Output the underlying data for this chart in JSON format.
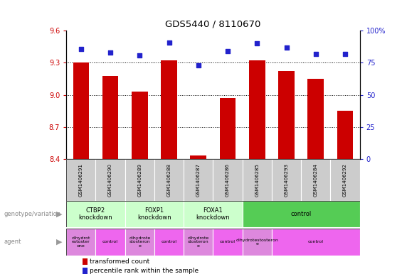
{
  "title": "GDS5440 / 8110670",
  "samples": [
    "GSM1406291",
    "GSM1406290",
    "GSM1406289",
    "GSM1406288",
    "GSM1406287",
    "GSM1406286",
    "GSM1406285",
    "GSM1406293",
    "GSM1406284",
    "GSM1406292"
  ],
  "transformed_count": [
    9.3,
    9.18,
    9.03,
    9.32,
    8.43,
    8.97,
    9.32,
    9.22,
    9.15,
    8.85
  ],
  "percentile_rank": [
    86,
    83,
    81,
    91,
    73,
    84,
    90,
    87,
    82,
    82
  ],
  "ylim_left": [
    8.4,
    9.6
  ],
  "ylim_right": [
    0,
    100
  ],
  "yticks_left": [
    8.4,
    8.7,
    9.0,
    9.3,
    9.6
  ],
  "yticks_right": [
    0,
    25,
    50,
    75,
    100
  ],
  "bar_color": "#cc0000",
  "dot_color": "#2222cc",
  "genotype_groups": [
    {
      "label": "CTBP2\nknockdown",
      "start": 0,
      "end": 2,
      "color": "#ccffcc"
    },
    {
      "label": "FOXP1\nknockdown",
      "start": 2,
      "end": 4,
      "color": "#ccffcc"
    },
    {
      "label": "FOXA1\nknockdown",
      "start": 4,
      "end": 6,
      "color": "#ccffcc"
    },
    {
      "label": "control",
      "start": 6,
      "end": 10,
      "color": "#55cc55"
    }
  ],
  "agent_groups": [
    {
      "label": "dihydrot\nestoster\none",
      "start": 0,
      "end": 1,
      "color": "#dd88dd"
    },
    {
      "label": "control",
      "start": 1,
      "end": 2,
      "color": "#ee66ee"
    },
    {
      "label": "dihydrote\nstosteron\ne",
      "start": 2,
      "end": 3,
      "color": "#dd88dd"
    },
    {
      "label": "control",
      "start": 3,
      "end": 4,
      "color": "#ee66ee"
    },
    {
      "label": "dihydrote\nstosteron\ne",
      "start": 4,
      "end": 5,
      "color": "#dd88dd"
    },
    {
      "label": "control",
      "start": 5,
      "end": 6,
      "color": "#ee66ee"
    },
    {
      "label": "dihydrotestosteron\ne",
      "start": 6,
      "end": 7,
      "color": "#dd88dd"
    },
    {
      "label": "control",
      "start": 7,
      "end": 10,
      "color": "#ee66ee"
    }
  ],
  "fig_width": 5.65,
  "fig_height": 3.93,
  "dpi": 100
}
